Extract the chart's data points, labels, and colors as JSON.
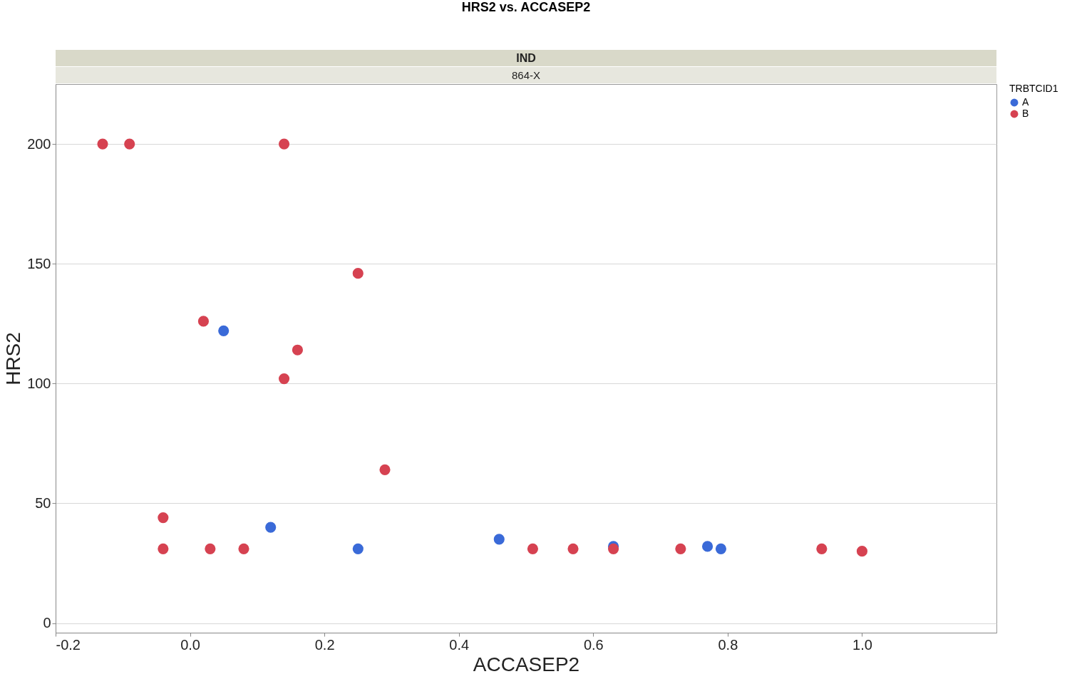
{
  "chart_data": {
    "type": "scatter",
    "title": "HRS2 vs. ACCASEP2",
    "xlabel": "ACCASEP2",
    "ylabel": "HRS2",
    "legend_title": "TRBTCID1",
    "annotations": [
      "IND",
      "864-X"
    ],
    "series": [
      {
        "name": "A",
        "color": "#3a6ad8",
        "x": [
          0.05,
          0.12,
          0.25,
          0.46,
          0.63,
          0.77,
          0.79
        ],
        "values": [
          122,
          40,
          31,
          35,
          32,
          32,
          31
        ]
      },
      {
        "name": "B",
        "color": "#d64251",
        "x": [
          -0.13,
          -0.09,
          0.14,
          0.25,
          0.02,
          0.16,
          0.14,
          0.29,
          -0.04,
          -0.04,
          0.03,
          0.08,
          0.51,
          0.57,
          0.63,
          0.73,
          0.94,
          1.0
        ],
        "values": [
          200,
          200,
          200,
          146,
          126,
          114,
          102,
          64,
          44,
          31,
          31,
          31,
          31,
          31,
          31,
          31,
          31,
          30
        ]
      }
    ],
    "xlim": [
      -0.2,
      1.2
    ],
    "xticks": [
      {
        "value": -0.2,
        "label": "-0.2"
      },
      {
        "value": 0,
        "label": "0.0"
      },
      {
        "value": 0.2,
        "label": "0.2"
      },
      {
        "value": 0.4,
        "label": "0.4"
      },
      {
        "value": 0.6,
        "label": "0.6"
      },
      {
        "value": 0.8,
        "label": "0.8"
      },
      {
        "value": 1.0,
        "label": "1.0"
      }
    ],
    "ylim": [
      -4,
      225
    ],
    "yticks": [
      0,
      50,
      100,
      150,
      200
    ],
    "grid": "y",
    "legend": "right"
  }
}
